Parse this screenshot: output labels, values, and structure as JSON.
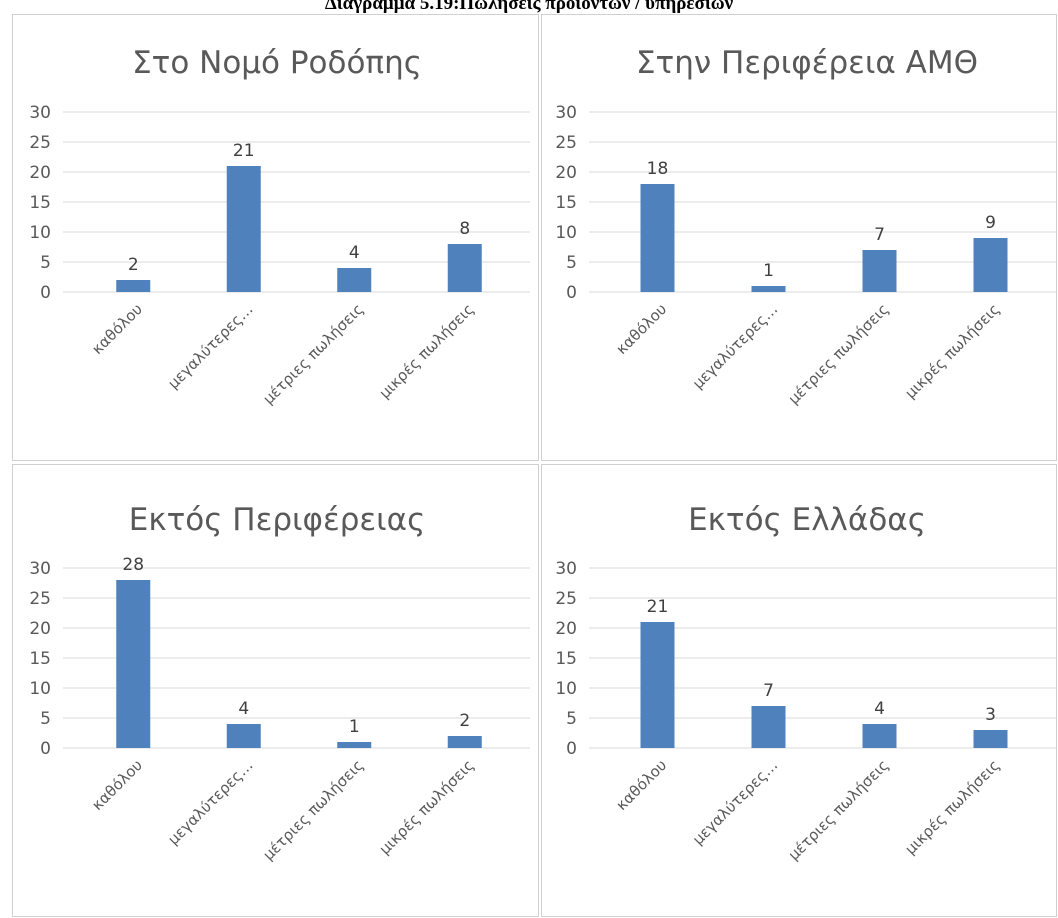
{
  "page_title": "Διάγραμμα 5.19:Πωλήσεις προϊόντων / υπηρεσιών",
  "colors": {
    "bar": "#4f81bd",
    "grid": "#d9d9d9",
    "text": "#595959"
  },
  "chart_data": [
    {
      "type": "bar",
      "title": "Στο Νομό Ροδόπης",
      "categories": [
        "καθόλου",
        "μεγαλύτερες…",
        "μέτριες πωλήσεις",
        "μικρές πωλήσεις"
      ],
      "values": [
        2,
        21,
        4,
        8
      ],
      "yticks": [
        0,
        5,
        10,
        15,
        20,
        25,
        30
      ],
      "ylim": [
        0,
        30
      ],
      "grid": true
    },
    {
      "type": "bar",
      "title": "Στην Περιφέρεια ΑΜΘ",
      "categories": [
        "καθόλου",
        "μεγαλύτερες…",
        "μέτριες πωλήσεις",
        "μικρές πωλήσεις"
      ],
      "values": [
        18,
        1,
        7,
        9
      ],
      "yticks": [
        0,
        5,
        10,
        15,
        20,
        25,
        30
      ],
      "ylim": [
        0,
        30
      ],
      "grid": true
    },
    {
      "type": "bar",
      "title": "Εκτός Περιφέρειας",
      "categories": [
        "καθόλου",
        "μεγαλύτερες…",
        "μέτριες πωλήσεις",
        "μικρές πωλήσεις"
      ],
      "values": [
        28,
        4,
        1,
        2
      ],
      "yticks": [
        0,
        5,
        10,
        15,
        20,
        25,
        30
      ],
      "ylim": [
        0,
        30
      ],
      "grid": true
    },
    {
      "type": "bar",
      "title": "Εκτός Ελλάδας",
      "categories": [
        "καθόλου",
        "μεγαλύτερες…",
        "μέτριες πωλήσεις",
        "μικρές πωλήσεις"
      ],
      "values": [
        21,
        7,
        4,
        3
      ],
      "yticks": [
        0,
        5,
        10,
        15,
        20,
        25,
        30
      ],
      "ylim": [
        0,
        30
      ],
      "grid": true
    }
  ]
}
